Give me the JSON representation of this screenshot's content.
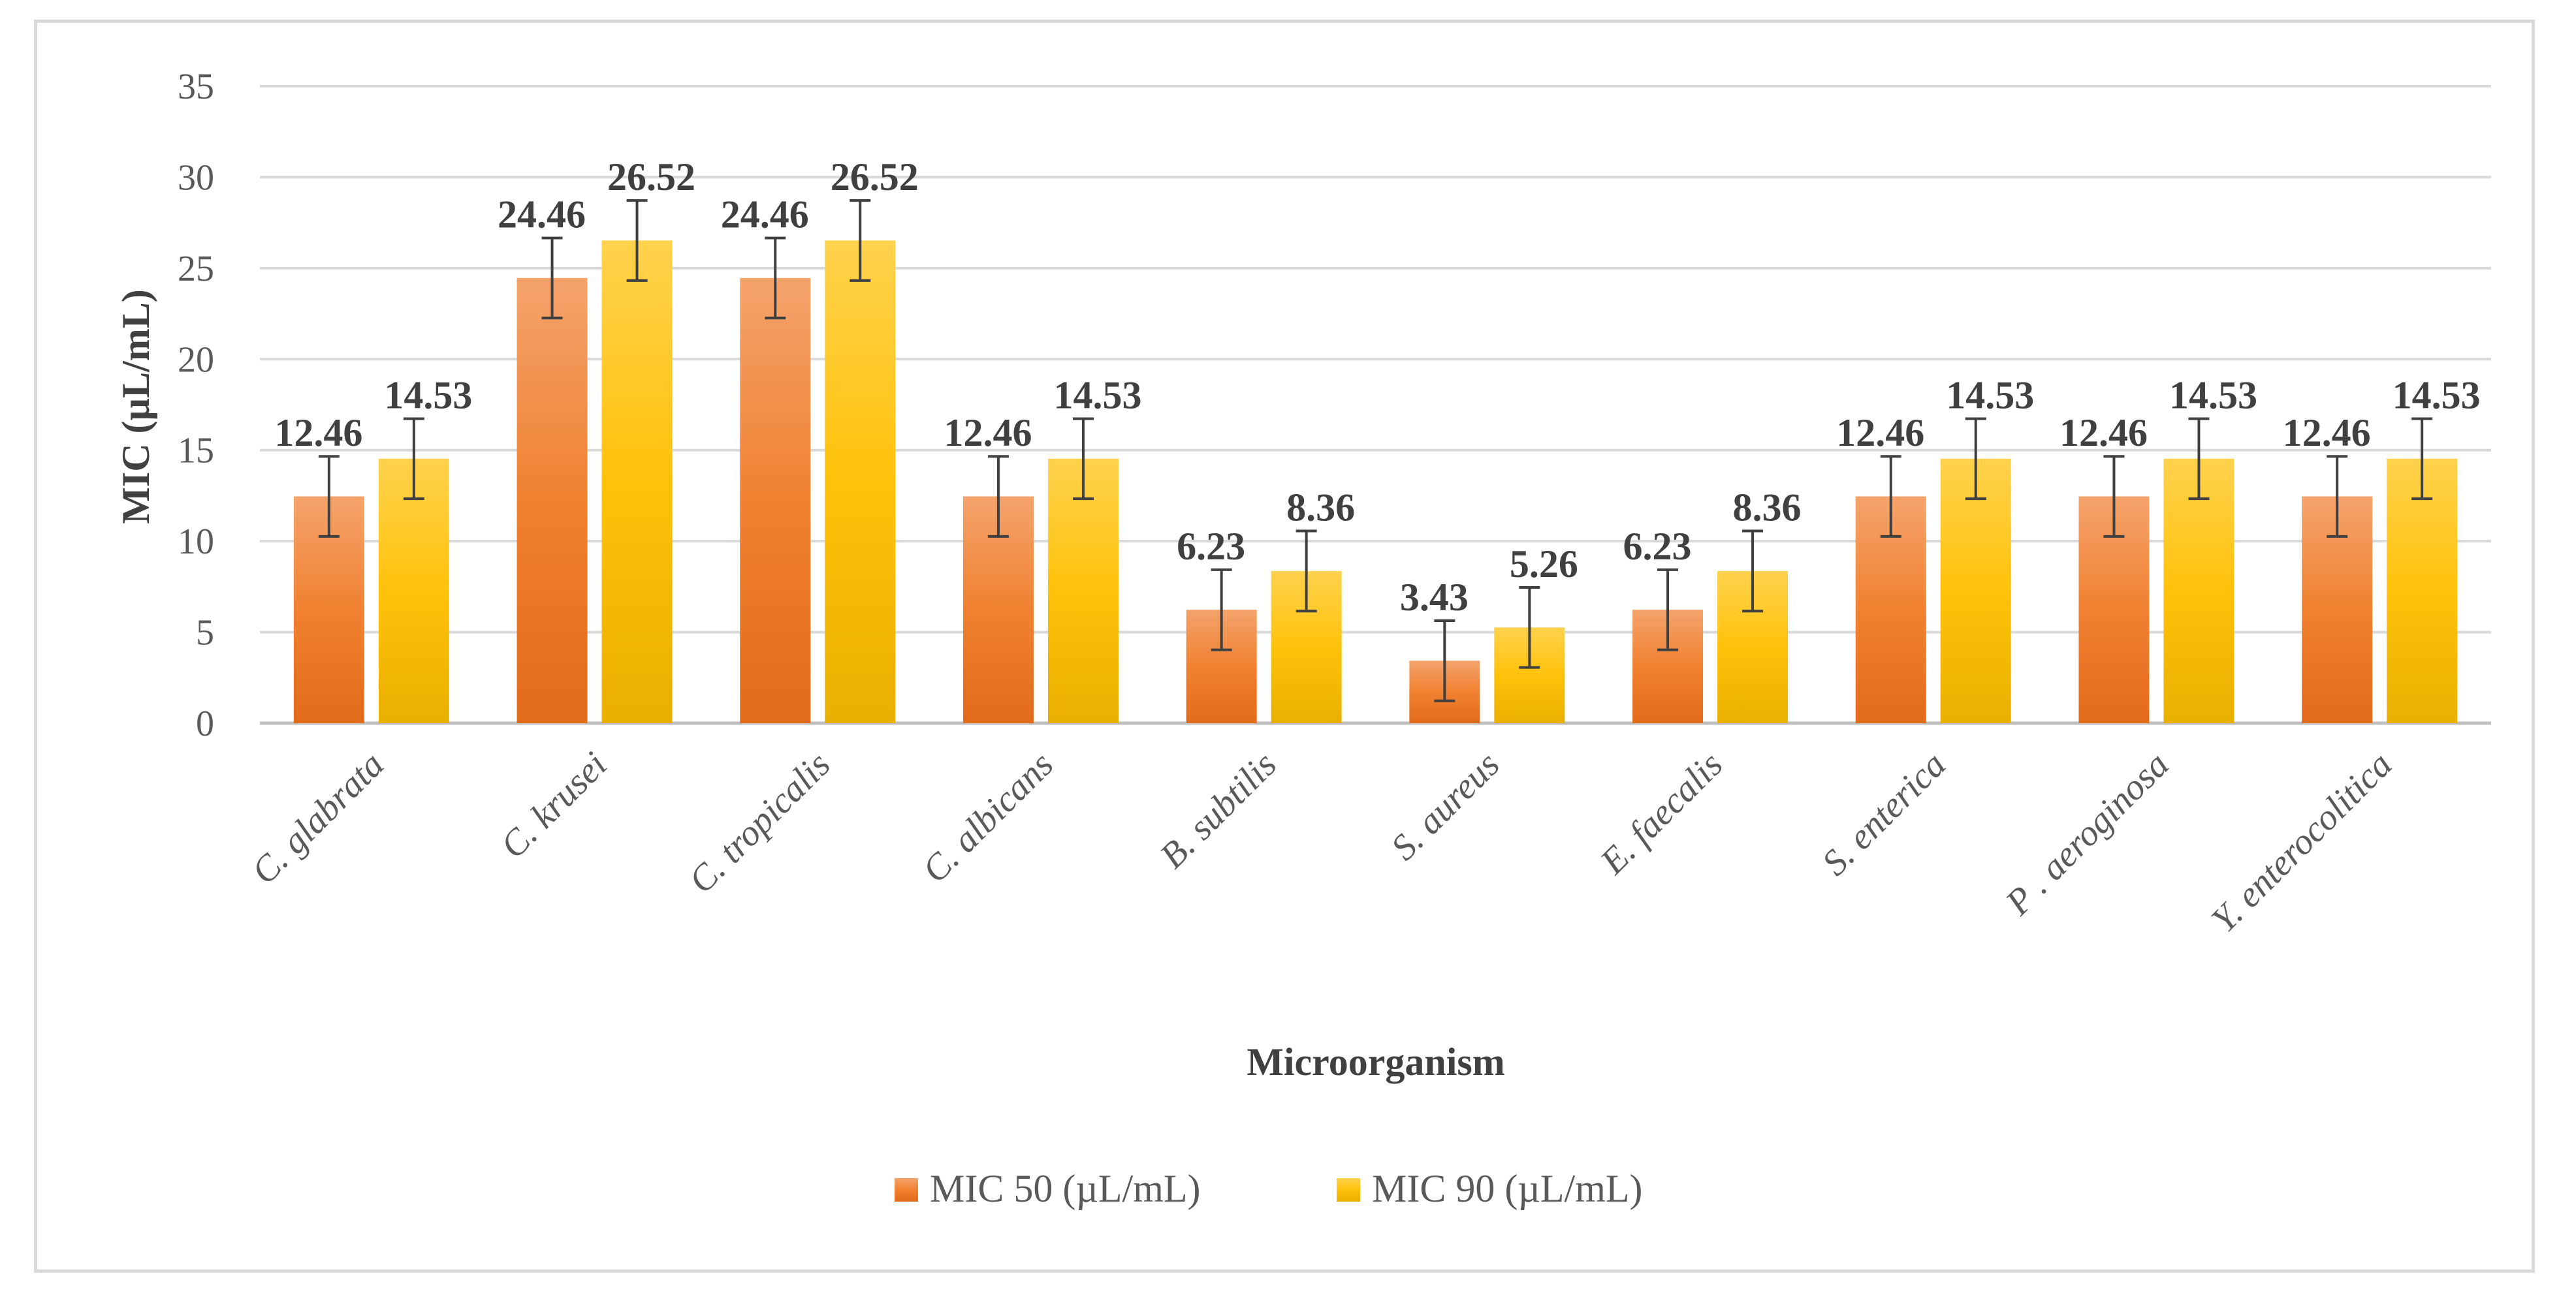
{
  "chart_data": {
    "type": "bar",
    "title": "",
    "xlabel": "Microorganism",
    "ylabel": "MIC (µL/mL)",
    "ylim": [
      0,
      35
    ],
    "yticks": [
      0,
      5,
      10,
      15,
      20,
      25,
      30,
      35
    ],
    "grid": true,
    "legend_position": "bottom",
    "categories": [
      "C. glabrata",
      "C. krusei",
      "C. tropicalis",
      "C. albicans",
      "B. subtilis",
      "S. aureus",
      "E. faecalis",
      "S. enterica",
      "P . aeroginosa",
      "Y. enterocolitica"
    ],
    "series": [
      {
        "name": "MIC 50 (µL/mL)",
        "color": "#ed7d31",
        "values": [
          12.46,
          24.46,
          24.46,
          12.46,
          6.23,
          3.43,
          6.23,
          12.46,
          12.46,
          12.46
        ],
        "labels": [
          "12.46",
          "24.46",
          "24.46",
          "12.46",
          "6.23",
          "3.43",
          "6.23",
          "12.46",
          "12.46",
          "12.46"
        ],
        "error": [
          2.2,
          2.2,
          2.2,
          2.2,
          2.2,
          2.2,
          2.2,
          2.2,
          2.2,
          2.2
        ]
      },
      {
        "name": "MIC 90 (µL/mL)",
        "color": "#ffc000",
        "values": [
          14.53,
          26.52,
          26.52,
          14.53,
          8.36,
          5.26,
          8.36,
          14.53,
          14.53,
          14.53
        ],
        "labels": [
          "14.53",
          "26.52",
          "26.52",
          "14.53",
          "8.36",
          "5.26",
          "8.36",
          "14.53",
          "14.53",
          "14.53"
        ],
        "error": [
          2.2,
          2.2,
          2.2,
          2.2,
          2.2,
          2.2,
          2.2,
          2.2,
          2.2,
          2.2
        ]
      }
    ]
  }
}
